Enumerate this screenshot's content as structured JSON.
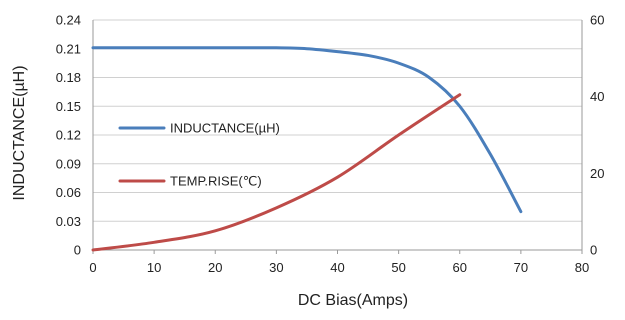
{
  "chart_data": {
    "type": "line",
    "xlabel": "DC Bias(Amps)",
    "ylabel": "INDUCTANCE(µH)",
    "xlim": [
      0,
      80
    ],
    "ylim": [
      0,
      0.24
    ],
    "y2lim": [
      0,
      60
    ],
    "x_ticks": [
      "0",
      "10",
      "20",
      "30",
      "40",
      "50",
      "60",
      "70",
      "80"
    ],
    "y_ticks": [
      "0",
      "0.03",
      "0.06",
      "0.09",
      "0.12",
      "0.15",
      "0.18",
      "0.21",
      "0.24"
    ],
    "y2_ticks": [
      "0",
      "20",
      "40",
      "60"
    ],
    "grid": "horizontal",
    "legend_position": "center-left",
    "series": [
      {
        "name": "INDUCTANCE(µH)",
        "axis": "left",
        "color": "#4a7ebb",
        "x": [
          0,
          10,
          20,
          25,
          30,
          35,
          40,
          45,
          50,
          55,
          60,
          65,
          70
        ],
        "y": [
          0.211,
          0.211,
          0.211,
          0.211,
          0.211,
          0.21,
          0.207,
          0.203,
          0.195,
          0.18,
          0.15,
          0.1,
          0.04
        ]
      },
      {
        "name": "TEMP.RISE(℃)",
        "axis": "right",
        "color": "#be4b48",
        "x": [
          0,
          10,
          20,
          30,
          40,
          50,
          60
        ],
        "y": [
          0,
          2,
          5,
          11,
          19,
          30,
          40.5
        ]
      }
    ]
  }
}
